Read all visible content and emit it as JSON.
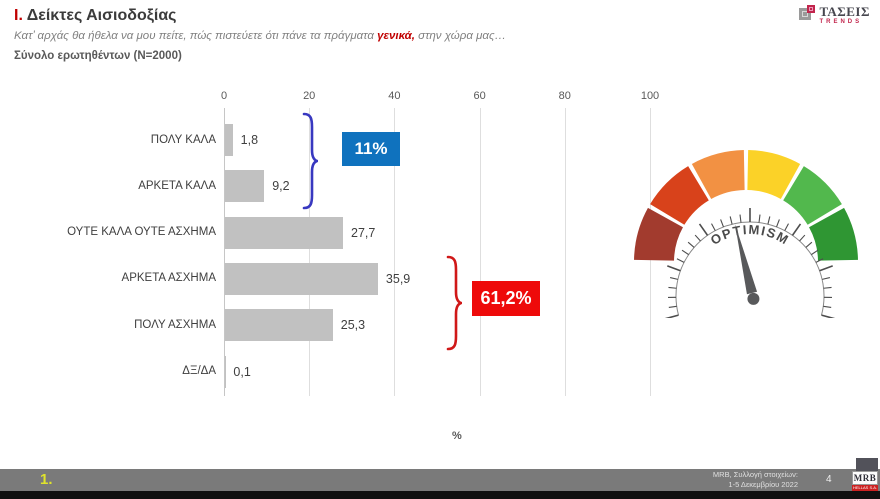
{
  "header": {
    "title_prefix": "Ι.",
    "title_rest": " Δείκτες Αισιοδοξίας",
    "subtitle_prefix": "Κατ’ αρχάς θα ήθελα να μου πείτε, πώς πιστεύετε ότι πάνε τα πράγματα ",
    "subtitle_highlight": "γενικά,",
    "subtitle_suffix": " στην χώρα μας…",
    "sample_note": "Σύνολο ερωτηθέντων (N=2000)"
  },
  "brand": {
    "name": "ΤΑΣΕΙΣ",
    "tagline": "TRENDS"
  },
  "chart_data": {
    "type": "bar",
    "orientation": "horizontal",
    "categories": [
      "ΠΟΛΥ ΚΑΛΑ",
      "ΑΡΚΕΤΑ ΚΑΛΑ",
      "ΟΥΤΕ ΚΑΛΑ ΟΥΤΕ ΑΣΧΗΜΑ",
      "ΑΡΚΕΤΑ ΑΣΧΗΜΑ",
      "ΠΟΛΥ ΑΣΧΗΜΑ",
      "ΔΞ/ΔΑ"
    ],
    "values": [
      1.8,
      9.2,
      27.7,
      35.9,
      25.3,
      0.1
    ],
    "value_labels": [
      "1,8",
      "9,2",
      "27,7",
      "35,9",
      "25,3",
      "0,1"
    ],
    "x_ticks": [
      0,
      20,
      40,
      60,
      80,
      100
    ],
    "xlim": [
      0,
      100
    ],
    "xlabel": "%",
    "bar_color": "#C1C1C1",
    "grid": true,
    "annotations": [
      {
        "label": "11%",
        "sum_of": [
          "ΠΟΛΥ ΚΑΛΑ",
          "ΑΡΚΕΤΑ ΚΑΛΑ"
        ],
        "box_color": "#0F72BE",
        "brace_color": "#3838C0"
      },
      {
        "label": "61,2%",
        "sum_of": [
          "ΑΡΚΕΤΑ ΑΣΧΗΜΑ",
          "ΠΟΛΥ ΑΣΧΗΜΑ"
        ],
        "box_color": "#EE0A0A",
        "brace_color": "#D01818"
      }
    ]
  },
  "gauge": {
    "label": "OPTIMISM",
    "segment_colors": [
      "#A23B2E",
      "#D8421B",
      "#F29143",
      "#FBD228",
      "#52B84D",
      "#2F9633"
    ],
    "needle_color": "#58595B",
    "tick_color": "#4d4d4d",
    "text_color": "#4A4A4A"
  },
  "footer": {
    "slide_marker": "1.",
    "source_line1": "MRB, Συλλογή στοιχείων:",
    "source_line2": "1-5 Δεκεμβρίου 2022",
    "page_number": "4",
    "logo_text": "MRB",
    "logo_subtext": "HELLAS S.A."
  }
}
